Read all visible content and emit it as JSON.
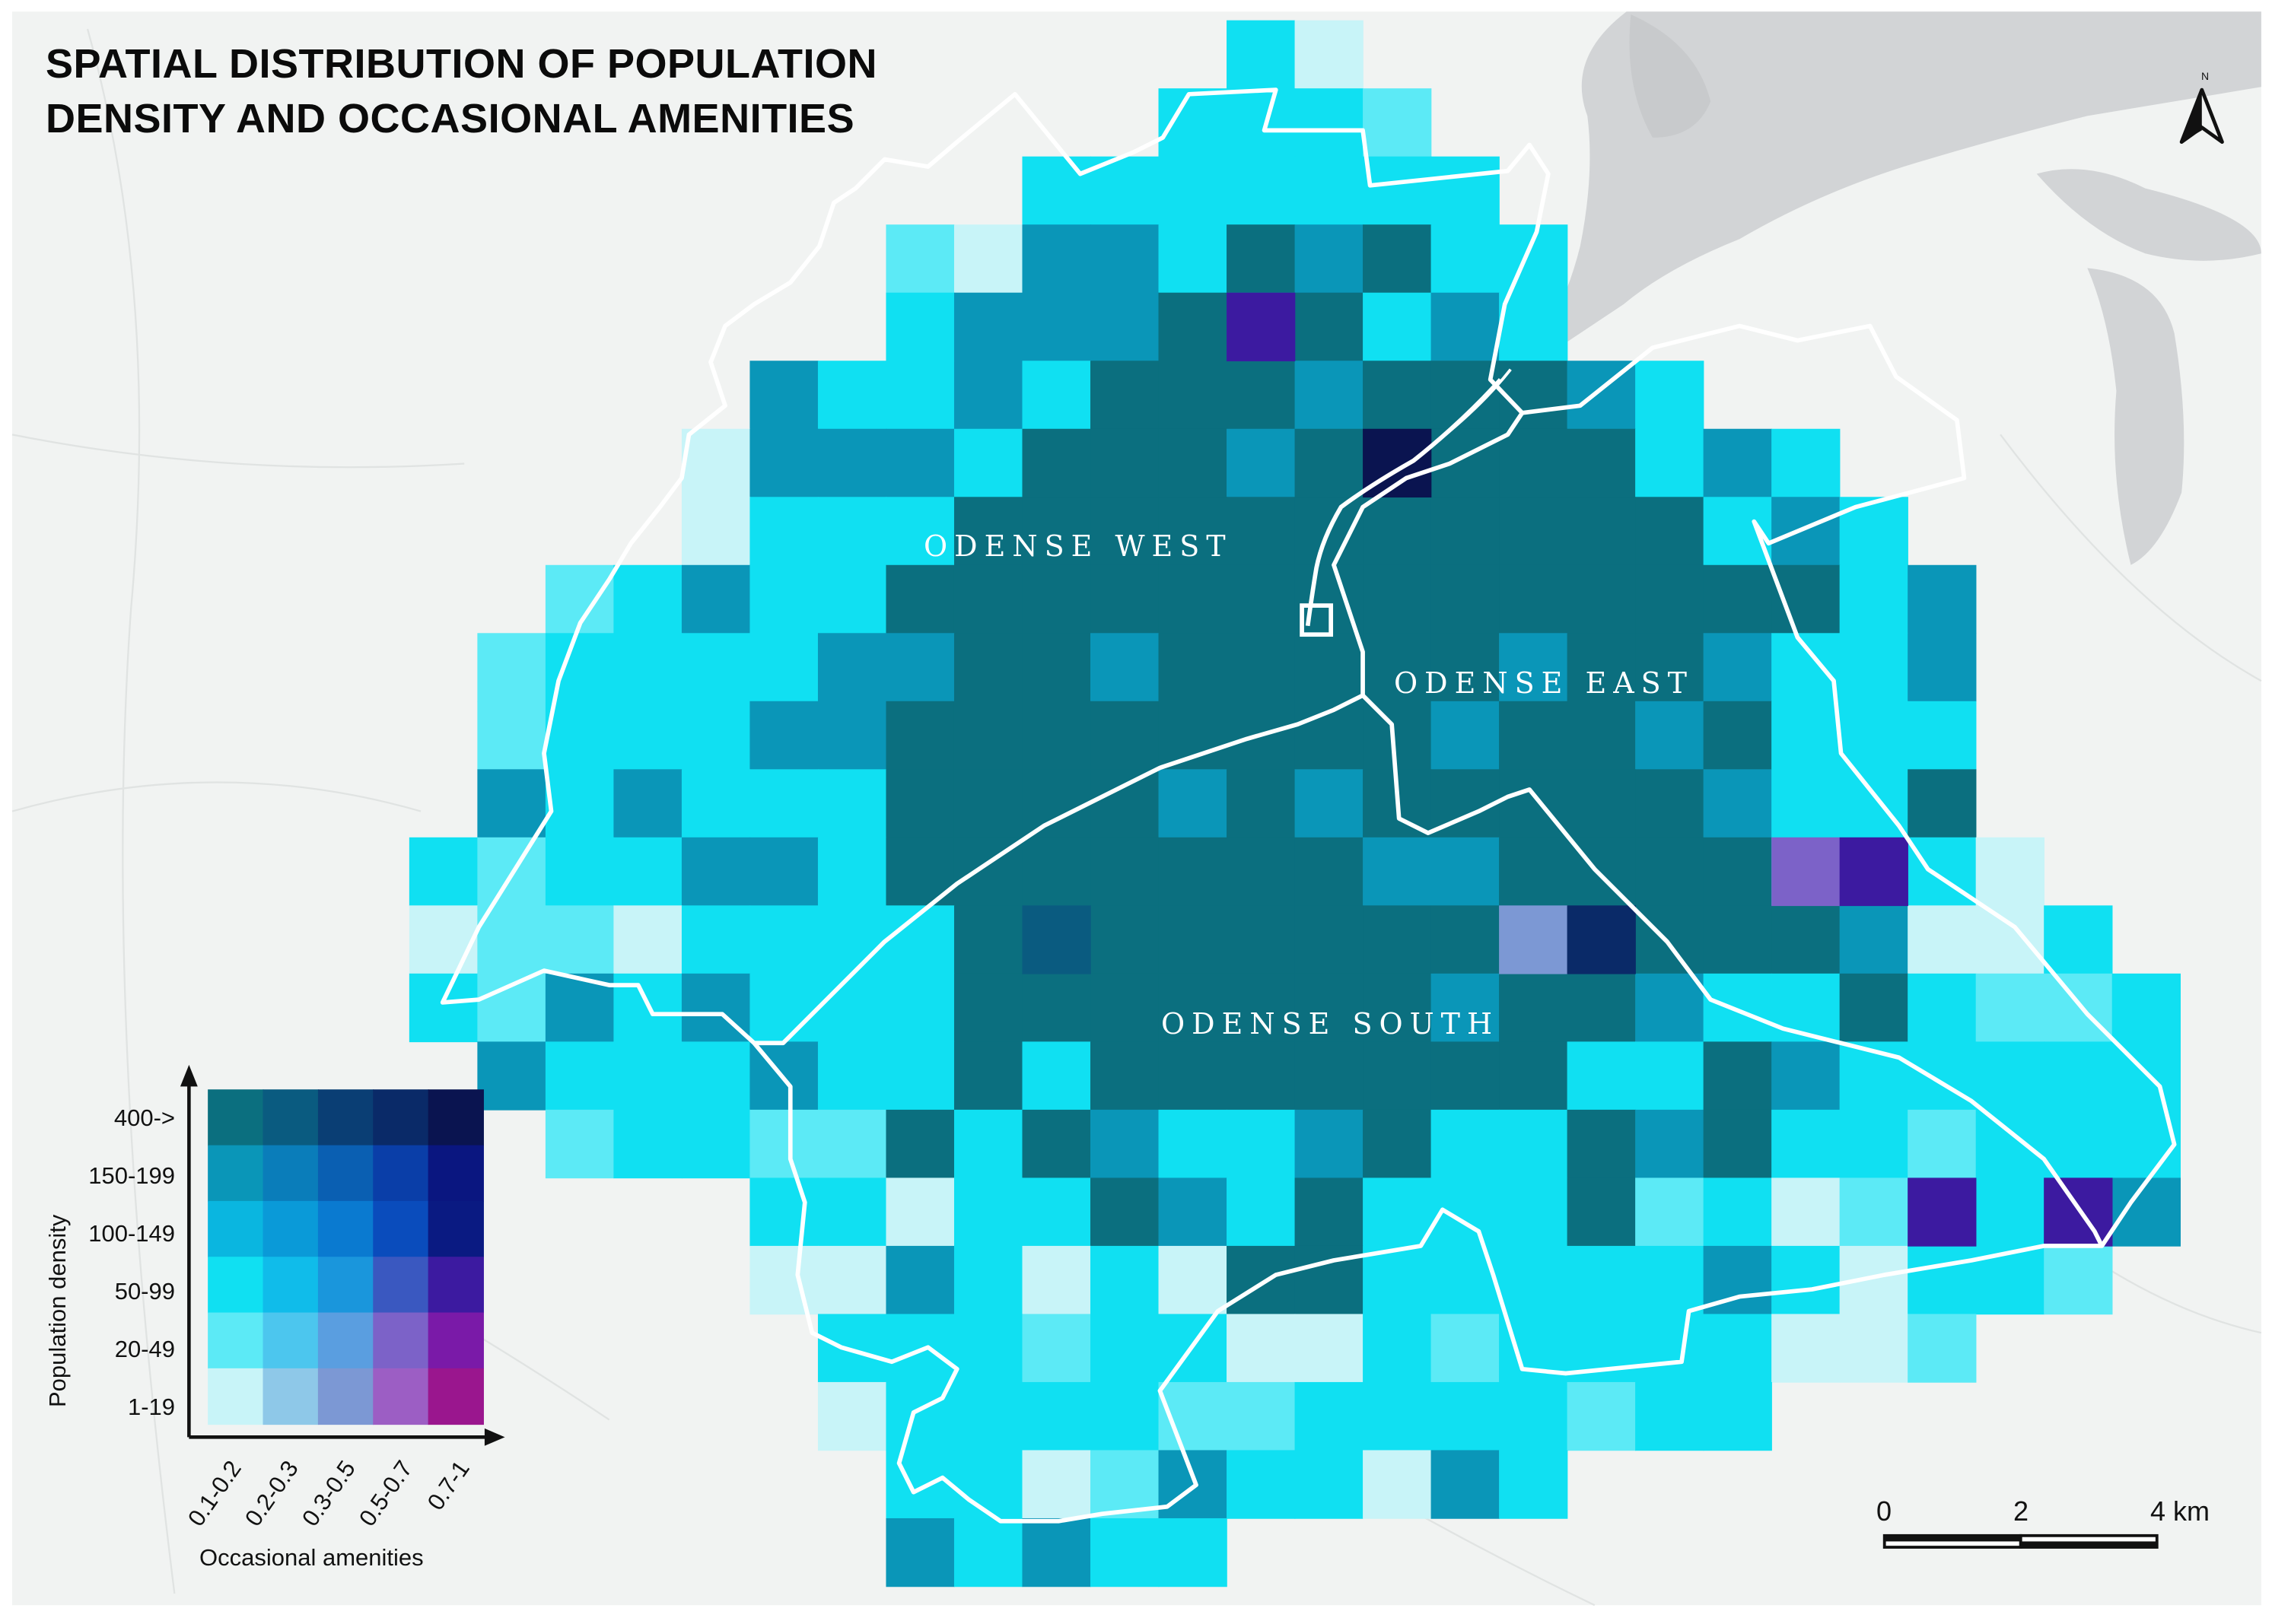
{
  "title_lines": [
    "SPATIAL DISTRIBUTION OF POPULATION",
    "DENSITY AND OCCASIONAL AMENITIES"
  ],
  "districts": [
    "ODENSE  WEST",
    "ODENSE  EAST",
    "ODENSE  SOUTH"
  ],
  "north_label": "N",
  "legend": {
    "y_title": "Population density",
    "x_title": "Occasional amenities",
    "y_classes": [
      "400->",
      "150-199",
      "100-149",
      "50-99",
      "20-49",
      "1-19"
    ],
    "x_classes": [
      "0.1-0.2",
      "0.2-0.3",
      "0.3-0.5",
      "0.5-0.7",
      "0.7-1"
    ],
    "colors_top_to_bottom": [
      [
        "#0b6f7f",
        "#0a5b80",
        "#0a3e74",
        "#0a2a68",
        "#0a1450"
      ],
      [
        "#0a96b8",
        "#0a7dba",
        "#0a5fb2",
        "#0a3ea8",
        "#0a1680"
      ],
      [
        "#0ab6e0",
        "#0a9ad8",
        "#0a7ad0",
        "#0a4cbc",
        "#0a1a82"
      ],
      [
        "#10e0f2",
        "#10bcea",
        "#1a96dc",
        "#3a58c0",
        "#3c1aa0"
      ],
      [
        "#5ceaf6",
        "#4cc6ee",
        "#5a9ee0",
        "#7c62c8",
        "#7a1aa8"
      ],
      [
        "#c8f4f8",
        "#8ec8e8",
        "#7c98d4",
        "#9c5ec4",
        "#9a168e"
      ]
    ]
  },
  "scale_bar": {
    "labels": [
      "0",
      "2",
      "4 km"
    ]
  },
  "map_colors": {
    "background": "#f1f3f2",
    "water": "#d2d4d6",
    "boundary": "#ffffff"
  }
}
